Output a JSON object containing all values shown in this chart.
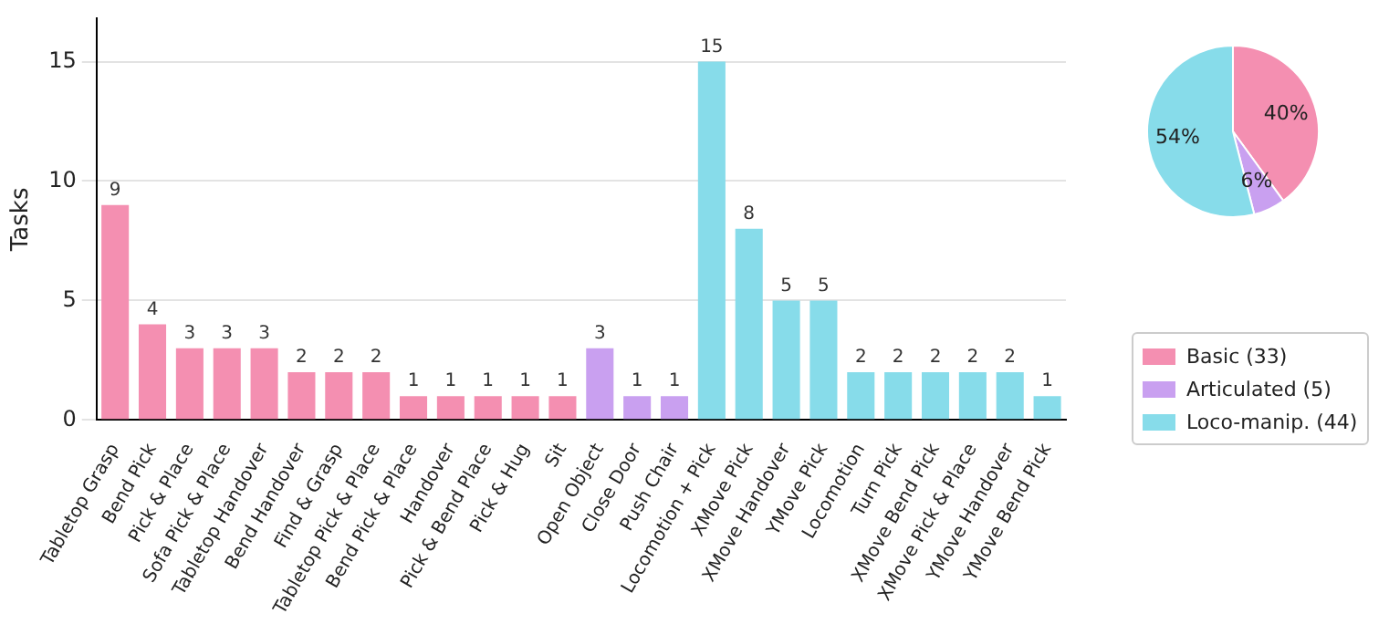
{
  "chart_data": [
    {
      "type": "bar",
      "ylabel": "Tasks",
      "categories": [
        "Tabletop Grasp",
        "Bend Pick",
        "Pick & Place",
        "Sofa Pick & Place",
        "Tabletop Handover",
        "Bend Handover",
        "Find & Grasp",
        "Tabletop Pick & Place",
        "Bend Pick & Place",
        "Handover",
        "Pick & Bend Place",
        "Pick & Hug",
        "Sit",
        "Open Object",
        "Close Door",
        "Push Chair",
        "Locomotion + Pick",
        "XMove Pick",
        "XMove Handover",
        "YMove Pick",
        "Locomotion",
        "Turn Pick",
        "XMove Bend Pick",
        "XMove Pick & Place",
        "YMove Handover",
        "YMove Bend Pick"
      ],
      "values": [
        9,
        4,
        3,
        3,
        3,
        2,
        2,
        2,
        1,
        1,
        1,
        1,
        1,
        3,
        1,
        1,
        15,
        8,
        5,
        5,
        2,
        2,
        2,
        2,
        2,
        1
      ],
      "colors": [
        "#f48fb1",
        "#f48fb1",
        "#f48fb1",
        "#f48fb1",
        "#f48fb1",
        "#f48fb1",
        "#f48fb1",
        "#f48fb1",
        "#f48fb1",
        "#f48fb1",
        "#f48fb1",
        "#f48fb1",
        "#f48fb1",
        "#c9a0f0",
        "#c9a0f0",
        "#c9a0f0",
        "#87dcea",
        "#87dcea",
        "#87dcea",
        "#87dcea",
        "#87dcea",
        "#87dcea",
        "#87dcea",
        "#87dcea",
        "#87dcea",
        "#87dcea"
      ],
      "ylim": [
        0,
        16.8
      ],
      "yticks": [
        0,
        5,
        10,
        15
      ],
      "grid": "y",
      "data_labels": true
    },
    {
      "type": "pie",
      "categories": [
        "Basic (33)",
        "Articulated (5)",
        "Loco-manip. (44)"
      ],
      "values": [
        40,
        6,
        54
      ],
      "colors": [
        "#f48fb1",
        "#c9a0f0",
        "#87dcea"
      ],
      "value_labels": [
        "40%",
        "6%",
        "54%"
      ],
      "legend": "bottom"
    }
  ]
}
